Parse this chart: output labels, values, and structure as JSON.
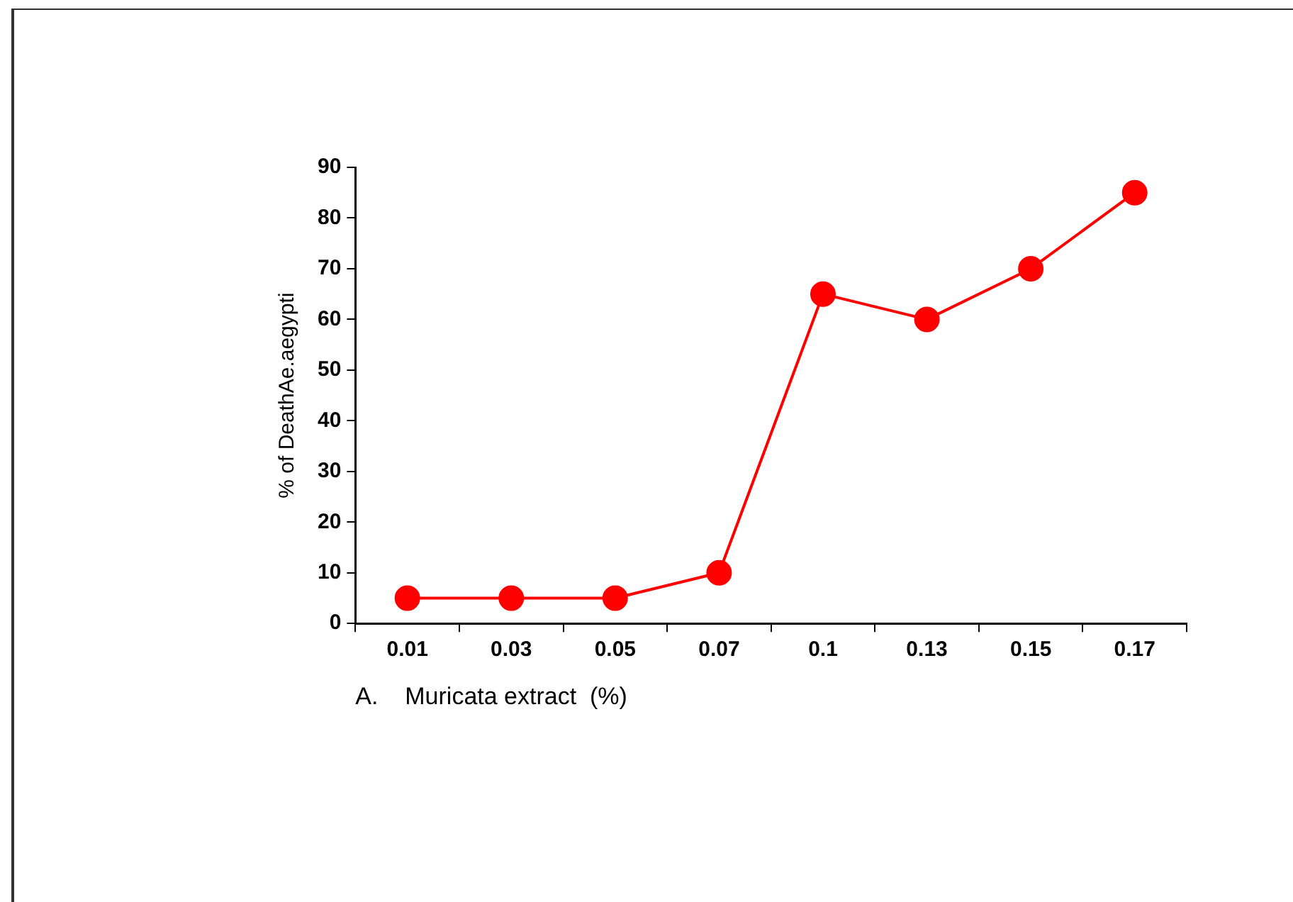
{
  "chart_data": {
    "type": "line",
    "xlabel": "A.    Muricata extract  (%)",
    "ylabel": "% of DeathAe.aegypti",
    "categories": [
      "0.01",
      "0.03",
      "0.05",
      "0.07",
      "0.1",
      "0.13",
      "0.15",
      "0.17"
    ],
    "series": [
      {
        "color": "#ff0000",
        "values": [
          5,
          5,
          5,
          10,
          65,
          60,
          70,
          85
        ]
      }
    ],
    "ylim": [
      0,
      90
    ],
    "yticks": [
      0,
      10,
      20,
      30,
      40,
      50,
      60,
      70,
      80,
      90
    ],
    "grid": false,
    "legend": false,
    "marker": "circle",
    "line_style": "solid"
  }
}
